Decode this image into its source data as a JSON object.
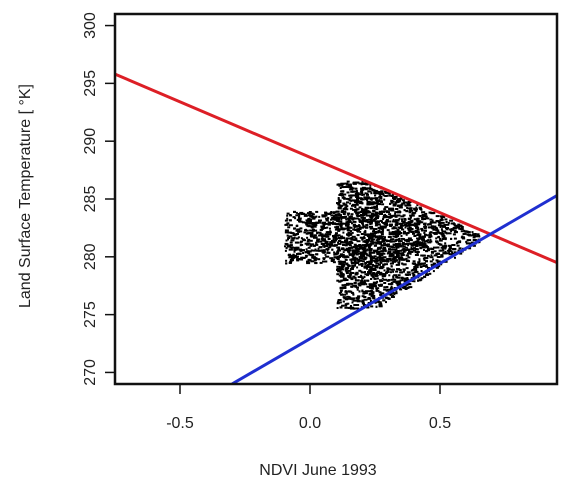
{
  "chart_data": {
    "type": "scatter",
    "title": "",
    "xlabel": "NDVI June 1993",
    "ylabel": "Land Surface Temperature [ °K]",
    "xlim": [
      -0.75,
      0.95
    ],
    "ylim": [
      269,
      301
    ],
    "x_ticks": [
      -0.5,
      0.0,
      0.5
    ],
    "x_tick_labels": [
      "-0.5",
      "0.0",
      "0.5"
    ],
    "y_ticks": [
      270,
      275,
      280,
      285,
      290,
      295,
      300
    ],
    "y_tick_labels": [
      "270",
      "275",
      "280",
      "285",
      "290",
      "295",
      "300"
    ],
    "grid": false,
    "legend": "none",
    "point_cloud": {
      "color": "#000000",
      "x_range": [
        -0.1,
        0.65
      ],
      "y_range": [
        275.6,
        286.6
      ],
      "center": [
        0.22,
        282
      ],
      "approx_count": 3000
    },
    "series": [
      {
        "type": "line",
        "color": "#dd1f26",
        "x": [
          -0.75,
          0.95
        ],
        "y": [
          295.8,
          279.5
        ]
      },
      {
        "type": "line",
        "color": "#1f2fd0",
        "x": [
          -0.3,
          0.95
        ],
        "y": [
          269,
          285.3
        ]
      }
    ]
  }
}
